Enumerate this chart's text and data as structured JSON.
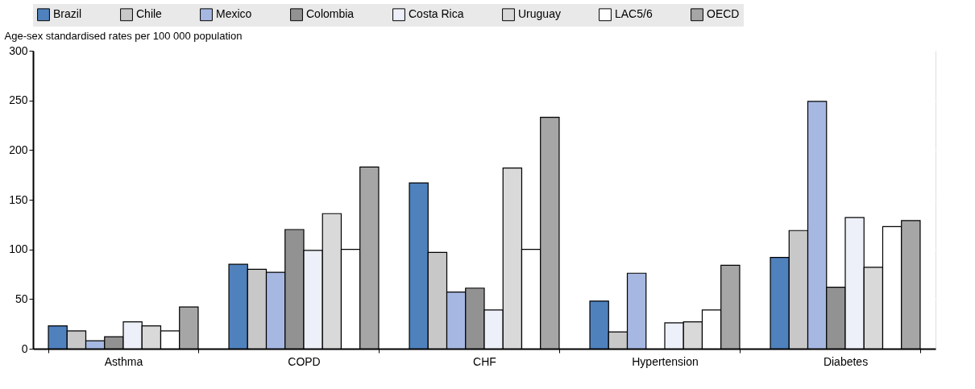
{
  "chart_data": {
    "type": "bar",
    "ylabel": "Age-sex standardised rates per 100 000 population",
    "categories": [
      "Asthma",
      "COPD",
      "CHF",
      "Hypertension",
      "Diabetes"
    ],
    "series": [
      {
        "name": "Brazil",
        "color": "#4f81bd",
        "values": [
          23,
          85,
          167,
          48,
          92
        ]
      },
      {
        "name": "Chile",
        "color": "#c8c8c8",
        "values": [
          18,
          80,
          97,
          17,
          119
        ]
      },
      {
        "name": "Mexico",
        "color": "#a6b8e2",
        "values": [
          8,
          77,
          57,
          76,
          249
        ]
      },
      {
        "name": "Colombia",
        "color": "#929292",
        "values": [
          12,
          120,
          61,
          null,
          62
        ]
      },
      {
        "name": "Costa Rica",
        "color": "#edf0f8",
        "values": [
          27,
          99,
          39,
          26,
          132
        ]
      },
      {
        "name": "Uruguay",
        "color": "#d9d9d9",
        "values": [
          23,
          136,
          182,
          27,
          82
        ]
      },
      {
        "name": "LAC5/6",
        "color": "#ffffff",
        "values": [
          18,
          100,
          100,
          39,
          123
        ]
      },
      {
        "name": "OECD",
        "color": "#a6a6a6",
        "values": [
          42,
          183,
          233,
          84,
          129
        ]
      }
    ],
    "ylim": [
      0,
      300
    ],
    "yticks": [
      0,
      50,
      100,
      150,
      200,
      250,
      300
    ],
    "grid": true,
    "legend": "top"
  }
}
